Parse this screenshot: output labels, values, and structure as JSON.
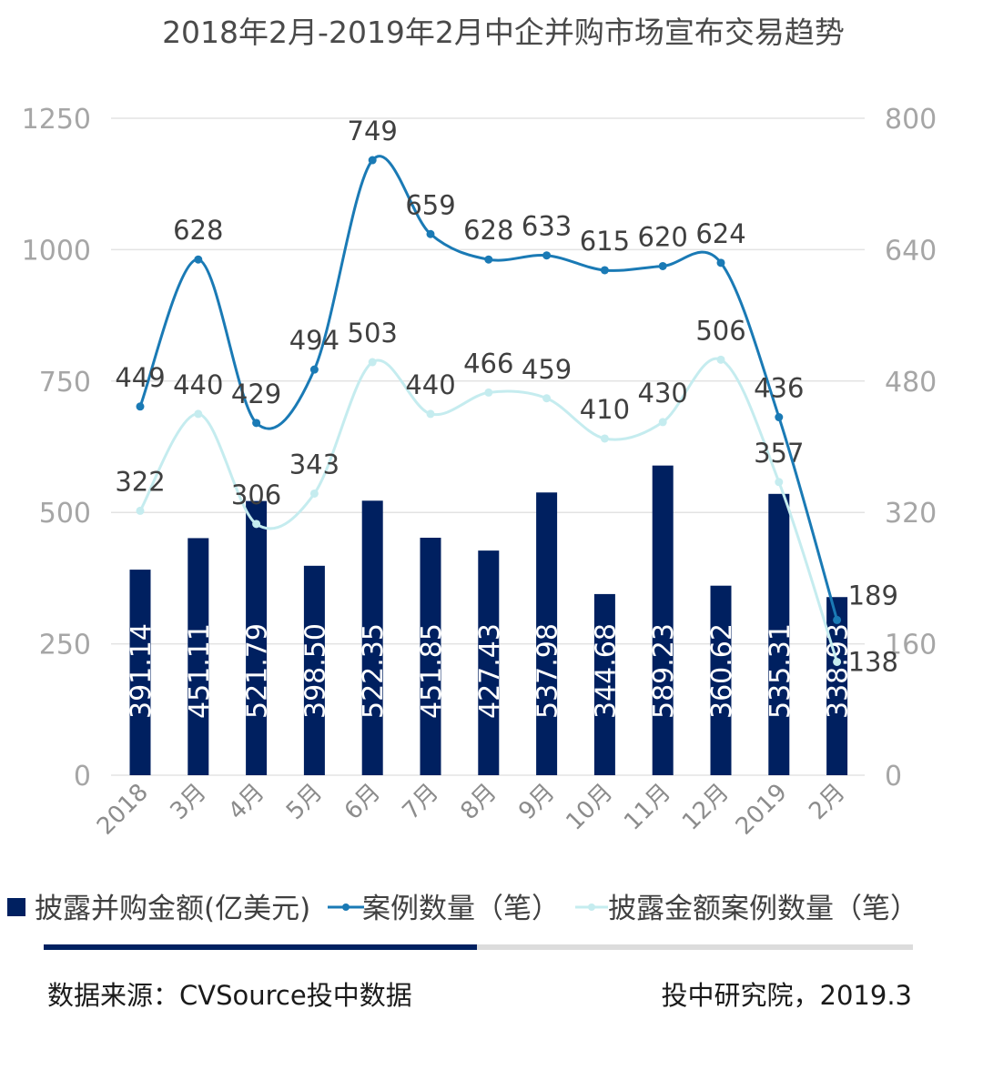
{
  "chart_data": {
    "type": "bar+line",
    "title": "2018年2月-2019年2月中企并购市场宣布交易趋势",
    "categories": [
      "2018年2月",
      "3月",
      "4月",
      "5月",
      "6月",
      "7月",
      "8月",
      "9月",
      "10月",
      "11月",
      "12月",
      "2019年1月",
      "2月"
    ],
    "category_tick_labels": [
      "2018",
      "3月",
      "4月",
      "5月",
      "6月",
      "7月",
      "8月",
      "9月",
      "10月",
      "11月",
      "12月",
      "2019",
      "2月"
    ],
    "left_axis": {
      "ylim": [
        0,
        1250
      ],
      "ticks": [
        "0",
        "250",
        "500",
        "750",
        "1000",
        "1250"
      ]
    },
    "right_axis": {
      "ylim": [
        0,
        800
      ],
      "ticks": [
        "0",
        "160",
        "320",
        "480",
        "640",
        "800"
      ]
    },
    "series": [
      {
        "name": "披露并购金额(亿美元)",
        "type": "bar",
        "axis": "left",
        "color": "#002060",
        "values": [
          391.14,
          451.11,
          521.79,
          398.5,
          522.35,
          451.85,
          427.43,
          537.98,
          344.68,
          589.23,
          360.62,
          535.31,
          338.93
        ],
        "labels": [
          "391.14",
          "451.11",
          "521.79",
          "398.50",
          "522.35",
          "451.85",
          "427.43",
          "537.98",
          "344.68",
          "589.23",
          "360.62",
          "535.31",
          "338.93"
        ]
      },
      {
        "name": "案例数量（笔）",
        "type": "line",
        "axis": "right",
        "color": "#1a7ab5",
        "values": [
          449,
          628,
          429,
          494,
          749,
          659,
          628,
          633,
          615,
          620,
          624,
          436,
          189
        ],
        "labels": [
          "449",
          "628",
          "429",
          "494",
          "749",
          "659",
          "628",
          "633",
          "615",
          "620",
          "624",
          "436",
          "189"
        ]
      },
      {
        "name": "披露金额案例数量（笔）",
        "type": "line",
        "axis": "right",
        "color": "#c5ecef",
        "values": [
          322,
          440,
          306,
          343,
          503,
          440,
          466,
          459,
          410,
          430,
          506,
          357,
          138
        ],
        "labels": [
          "322",
          "440",
          "306",
          "343",
          "503",
          "440",
          "466",
          "459",
          "410",
          "430",
          "506",
          "357",
          "138"
        ]
      }
    ]
  },
  "footer": {
    "source": "数据来源：CVSource投中数据",
    "credit": "投中研究院，2019.3"
  }
}
